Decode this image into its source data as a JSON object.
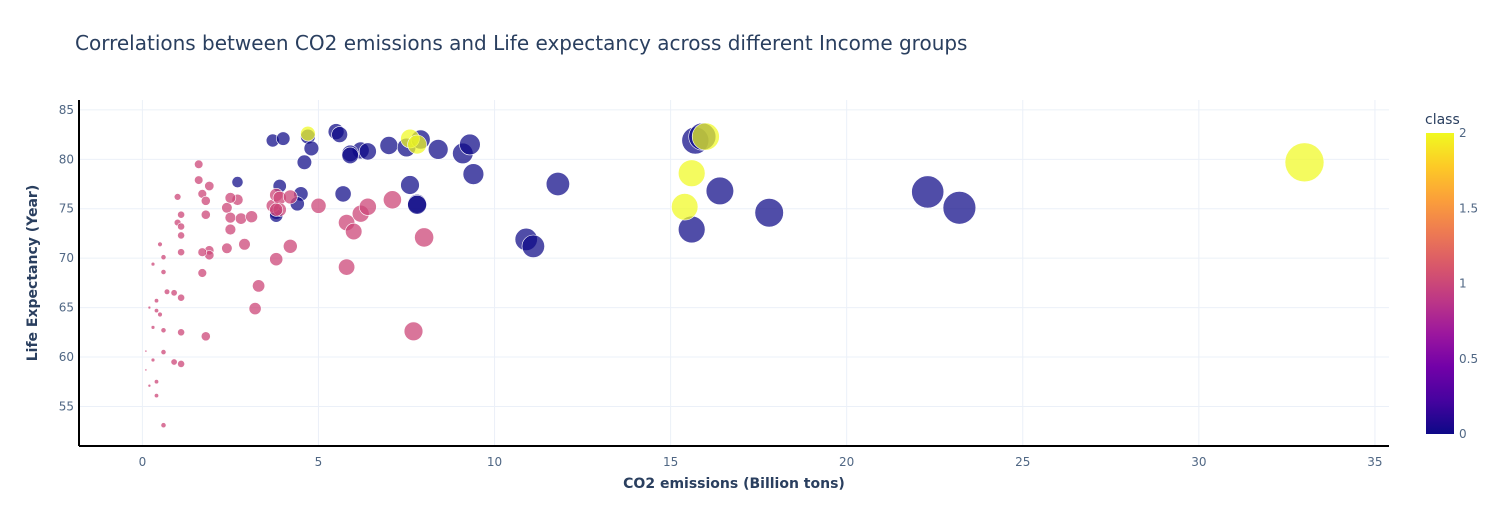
{
  "chart_data": {
    "type": "scatter",
    "title": "Correlations between CO2 emissions and Life expectancy across different Income groups",
    "xlabel": "CO2 emissions (Billion tons)",
    "ylabel": "Life Expectancy (Year)",
    "xlim": [
      -1.8,
      35.4
    ],
    "ylim": [
      51,
      86
    ],
    "xticks": [
      0,
      5,
      10,
      15,
      20,
      25,
      30,
      35
    ],
    "yticks": [
      55,
      60,
      65,
      70,
      75,
      80,
      85
    ],
    "grid": true,
    "size_note": "marker size scales with CO2 emissions",
    "colorbar": {
      "title": "class",
      "range": [
        0,
        2
      ],
      "ticks": [
        "0",
        "0.5",
        "1",
        "1.5",
        "2"
      ],
      "colors": [
        "#0d0887",
        "#46039f",
        "#7201a8",
        "#9c179e",
        "#bd3786",
        "#d8576b",
        "#ed7953",
        "#fb9f3a",
        "#fdca26",
        "#f0f921"
      ]
    },
    "series": [
      {
        "name": "class 0",
        "class": 0,
        "points": [
          [
            3.7,
            81.9
          ],
          [
            4.0,
            82.1
          ],
          [
            4.7,
            82.3
          ],
          [
            5.5,
            82.8
          ],
          [
            5.6,
            82.5
          ],
          [
            4.8,
            81.1
          ],
          [
            6.2,
            80.9
          ],
          [
            5.9,
            80.6
          ],
          [
            5.9,
            80.4
          ],
          [
            6.4,
            80.8
          ],
          [
            7.0,
            81.4
          ],
          [
            7.5,
            81.2
          ],
          [
            7.9,
            82.0
          ],
          [
            8.4,
            81.0
          ],
          [
            9.1,
            80.6
          ],
          [
            9.3,
            81.5
          ],
          [
            4.6,
            79.7
          ],
          [
            2.7,
            77.7
          ],
          [
            3.9,
            77.3
          ],
          [
            4.5,
            76.5
          ],
          [
            4.4,
            75.5
          ],
          [
            3.8,
            74.6
          ],
          [
            3.8,
            74.3
          ],
          [
            5.7,
            76.5
          ],
          [
            7.6,
            77.4
          ],
          [
            7.8,
            75.5
          ],
          [
            7.8,
            75.4
          ],
          [
            9.4,
            78.5
          ],
          [
            11.8,
            77.5
          ],
          [
            10.9,
            71.9
          ],
          [
            11.1,
            71.2
          ],
          [
            15.7,
            81.9
          ],
          [
            15.9,
            82.3
          ],
          [
            16.4,
            76.8
          ],
          [
            15.6,
            72.9
          ],
          [
            17.8,
            74.6
          ],
          [
            22.3,
            76.7
          ],
          [
            23.2,
            75.1
          ]
        ]
      },
      {
        "name": "class 1",
        "class": 1,
        "points": [
          [
            1.6,
            79.5
          ],
          [
            1.6,
            77.9
          ],
          [
            1.9,
            77.3
          ],
          [
            1.7,
            76.5
          ],
          [
            1.0,
            76.2
          ],
          [
            1.8,
            75.8
          ],
          [
            1.8,
            74.4
          ],
          [
            1.1,
            74.4
          ],
          [
            2.4,
            75.1
          ],
          [
            2.5,
            74.1
          ],
          [
            2.7,
            75.9
          ],
          [
            2.5,
            76.1
          ],
          [
            2.8,
            74.0
          ],
          [
            3.1,
            74.2
          ],
          [
            3.7,
            75.3
          ],
          [
            3.8,
            76.4
          ],
          [
            3.9,
            76.1
          ],
          [
            4.2,
            76.2
          ],
          [
            3.9,
            74.9
          ],
          [
            3.8,
            74.9
          ],
          [
            1.0,
            73.6
          ],
          [
            1.1,
            73.2
          ],
          [
            1.1,
            72.3
          ],
          [
            2.5,
            72.9
          ],
          [
            2.4,
            71.0
          ],
          [
            1.9,
            70.8
          ],
          [
            1.9,
            70.3
          ],
          [
            2.9,
            71.4
          ],
          [
            1.1,
            70.6
          ],
          [
            1.7,
            70.6
          ],
          [
            3.8,
            69.9
          ],
          [
            4.2,
            71.2
          ],
          [
            5.0,
            75.3
          ],
          [
            5.8,
            73.6
          ],
          [
            6.0,
            72.7
          ],
          [
            6.2,
            74.5
          ],
          [
            6.4,
            75.2
          ],
          [
            7.1,
            75.9
          ],
          [
            8.0,
            72.1
          ],
          [
            5.8,
            69.1
          ],
          [
            3.3,
            67.2
          ],
          [
            1.7,
            68.5
          ],
          [
            0.5,
            71.4
          ],
          [
            0.6,
            70.1
          ],
          [
            0.3,
            69.4
          ],
          [
            0.6,
            68.6
          ],
          [
            3.2,
            64.9
          ],
          [
            0.7,
            66.6
          ],
          [
            0.9,
            66.5
          ],
          [
            1.1,
            66.0
          ],
          [
            0.4,
            65.7
          ],
          [
            0.2,
            65.0
          ],
          [
            0.4,
            64.7
          ],
          [
            0.5,
            64.3
          ],
          [
            0.3,
            63.0
          ],
          [
            0.6,
            62.7
          ],
          [
            1.1,
            62.5
          ],
          [
            1.8,
            62.1
          ],
          [
            7.7,
            62.6
          ],
          [
            0.6,
            60.5
          ],
          [
            0.3,
            59.7
          ],
          [
            0.9,
            59.5
          ],
          [
            1.1,
            59.3
          ],
          [
            0.1,
            58.7
          ],
          [
            0.4,
            57.5
          ],
          [
            0.4,
            56.1
          ],
          [
            0.6,
            53.1
          ],
          [
            0.1,
            60.6
          ],
          [
            0.2,
            57.1
          ]
        ]
      },
      {
        "name": "class 2",
        "class": 2,
        "points": [
          [
            4.7,
            82.6
          ],
          [
            7.6,
            82.1
          ],
          [
            7.8,
            81.5
          ],
          [
            16.0,
            82.3
          ],
          [
            15.6,
            78.6
          ],
          [
            15.4,
            75.2
          ],
          [
            33.0,
            79.7
          ]
        ]
      }
    ]
  }
}
